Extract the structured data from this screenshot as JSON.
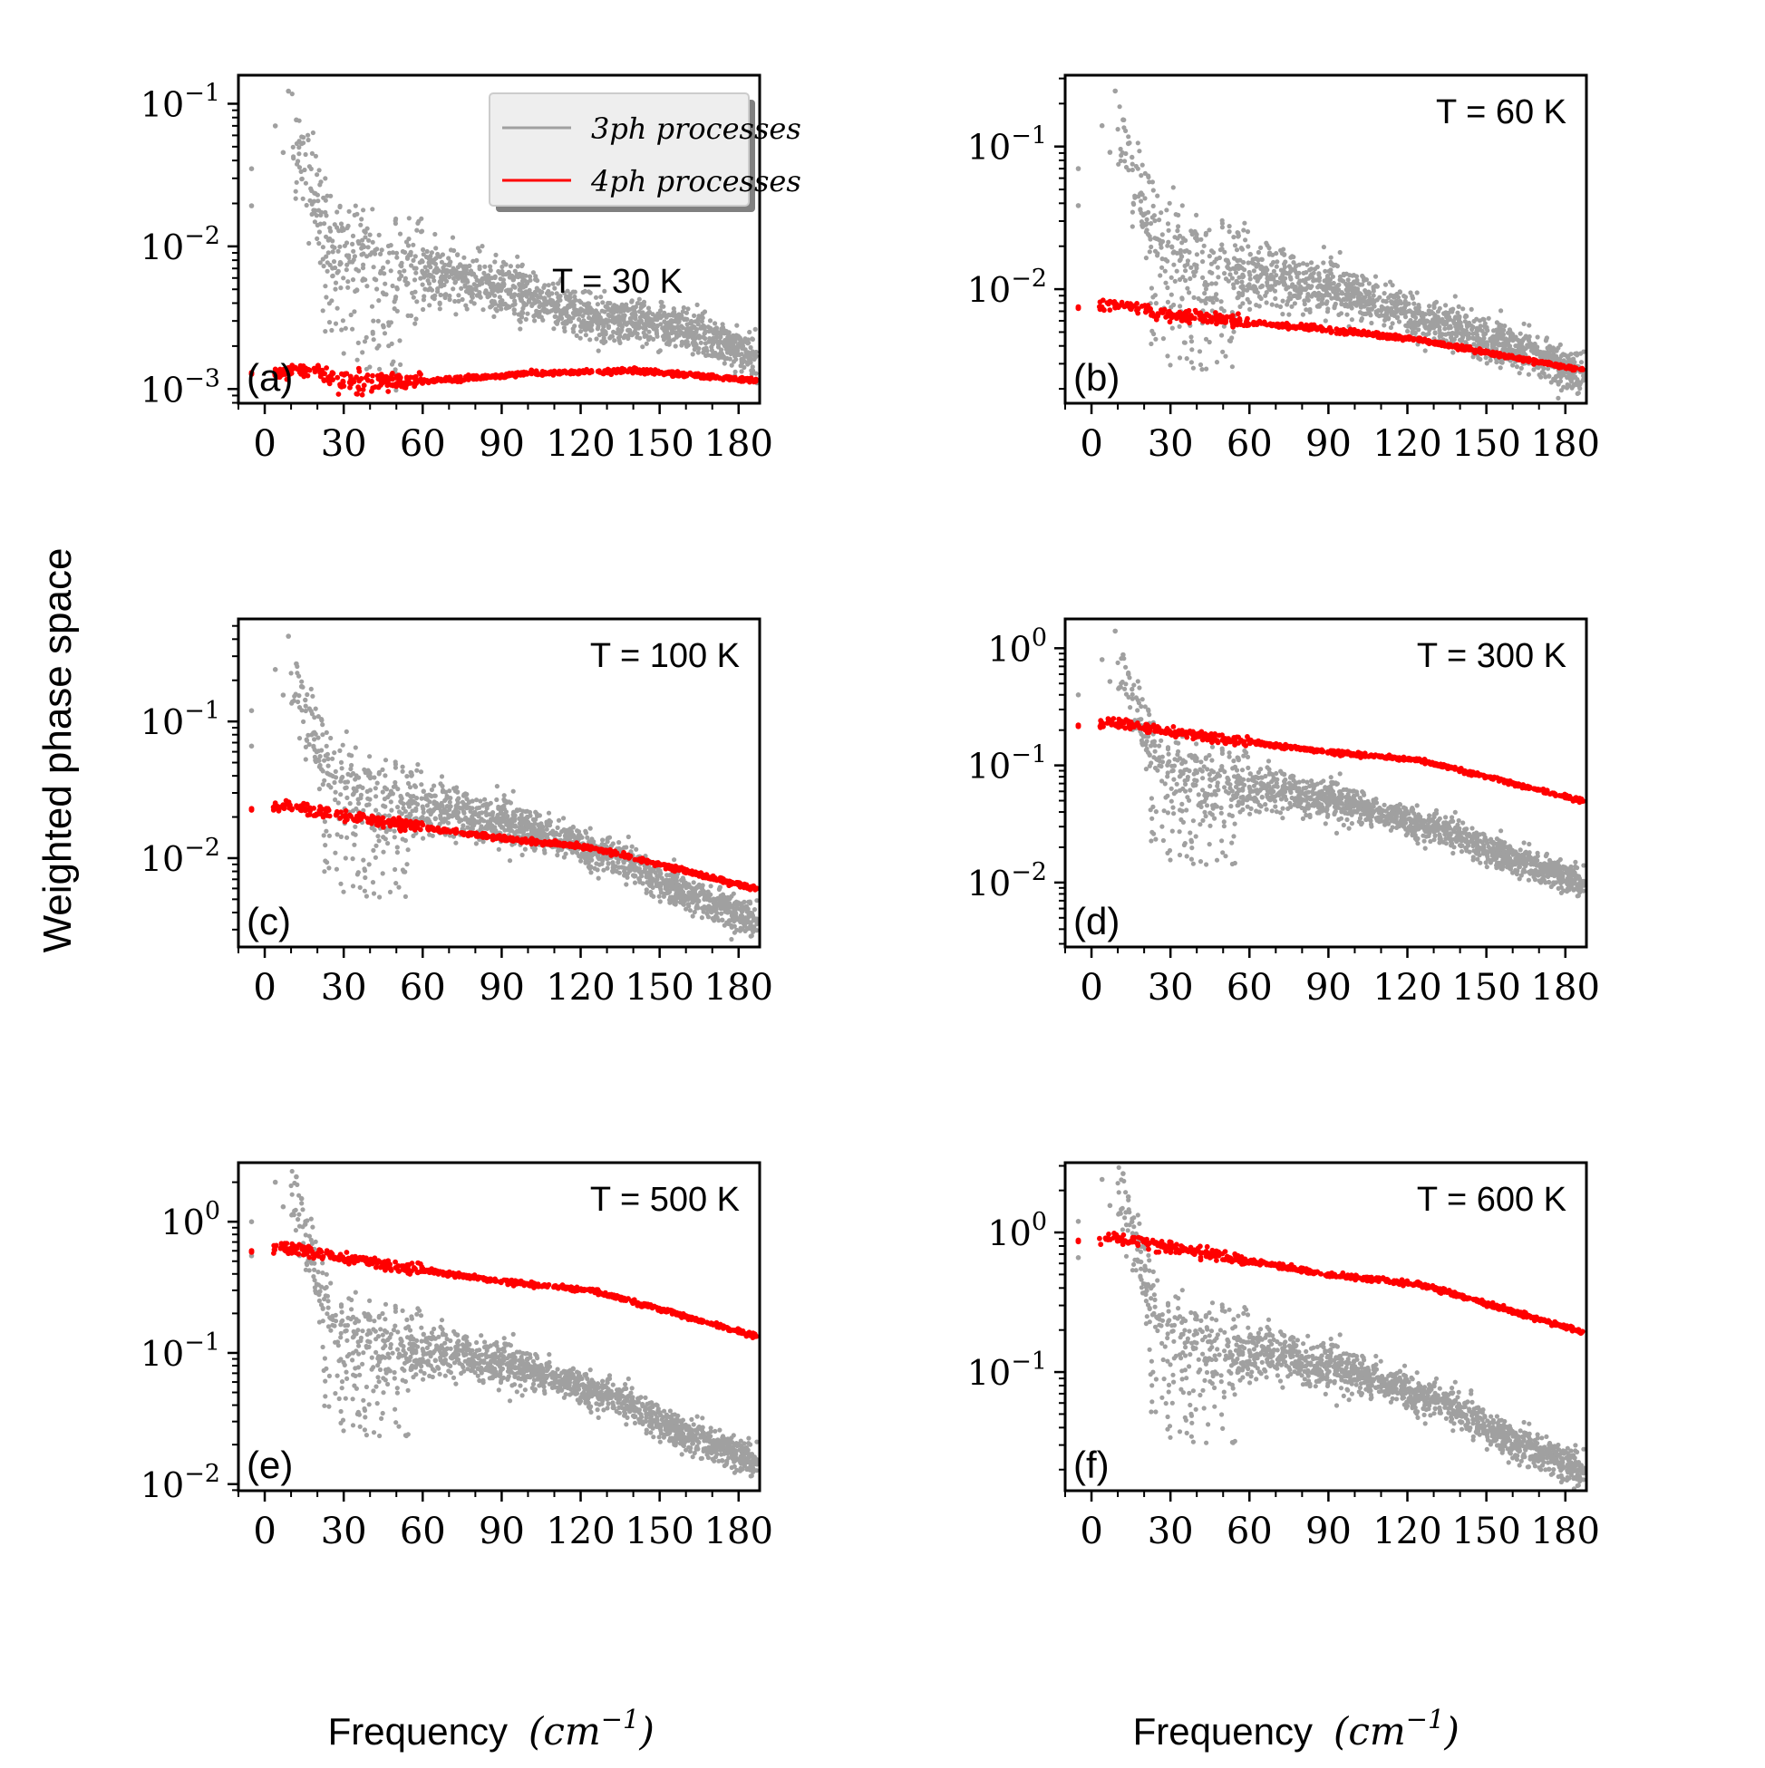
{
  "figure": {
    "ylabel": "Weighted phase space",
    "xlabel_text": "Frequency",
    "xlabel_unit_base": "cm",
    "xlabel_unit_exp": "−1",
    "legend": [
      {
        "label": "3ph processes",
        "color": "#a0a0a0"
      },
      {
        "label": "4ph processes",
        "color": "#ff0000"
      }
    ],
    "colors": {
      "three_ph": "#a0a0a0",
      "four_ph": "#ff0000",
      "axis": "#000000"
    }
  },
  "chart_data": [
    {
      "type": "scatter",
      "panel": "(a)",
      "temperature_label": "T = 30 K",
      "xlabel": "Frequency (cm^-1)",
      "ylabel": "Weighted phase space",
      "xlim": [
        -10,
        188
      ],
      "ylim_log10": [
        -3.1,
        -0.8
      ],
      "xticks": [
        0,
        30,
        60,
        90,
        120,
        150,
        180
      ],
      "yticks": [
        {
          "e": -3,
          "label": "−3"
        },
        {
          "e": -2,
          "label": "−2"
        },
        {
          "e": -1,
          "label": "−1"
        }
      ],
      "legend": true,
      "series": [
        {
          "name": "3ph processes",
          "start": 0.035,
          "mid": 0.0055,
          "end": 0.0017,
          "spread": 0.28
        },
        {
          "name": "4ph processes",
          "start": 0.0013,
          "dip": 0.00105,
          "peak": 0.00135,
          "end": 0.00115
        }
      ]
    },
    {
      "type": "scatter",
      "panel": "(b)",
      "temperature_label": "T = 60 K",
      "xlabel": "Frequency (cm^-1)",
      "ylabel": "Weighted phase space",
      "xlim": [
        -10,
        188
      ],
      "ylim_log10": [
        -2.8,
        -0.5
      ],
      "xticks": [
        0,
        30,
        60,
        90,
        120,
        150,
        180
      ],
      "yticks": [
        {
          "e": -2,
          "label": "−2"
        },
        {
          "e": -1,
          "label": "−1"
        }
      ],
      "legend": false,
      "series": [
        {
          "name": "3ph processes",
          "start": 0.07,
          "mid": 0.011,
          "end": 0.0025,
          "spread": 0.28
        },
        {
          "name": "4ph processes",
          "start": 0.0075,
          "mid": 0.0052,
          "end": 0.0027
        }
      ]
    },
    {
      "type": "scatter",
      "panel": "(c)",
      "temperature_label": "T = 100 K",
      "xlabel": "Frequency (cm^-1)",
      "ylabel": "Weighted phase space",
      "xlim": [
        -10,
        188
      ],
      "ylim_log10": [
        -2.65,
        -0.25
      ],
      "xticks": [
        0,
        30,
        60,
        90,
        120,
        150,
        180
      ],
      "yticks": [
        {
          "e": -2,
          "label": "−2"
        },
        {
          "e": -1,
          "label": "−1"
        }
      ],
      "legend": false,
      "series": [
        {
          "name": "3ph processes",
          "start": 0.12,
          "mid": 0.02,
          "end": 0.0035,
          "spread": 0.25
        },
        {
          "name": "4ph processes",
          "start": 0.023,
          "mid": 0.014,
          "end": 0.006
        }
      ]
    },
    {
      "type": "scatter",
      "panel": "(d)",
      "temperature_label": "T = 300 K",
      "xlabel": "Frequency (cm^-1)",
      "ylabel": "Weighted phase space",
      "xlim": [
        -10,
        188
      ],
      "ylim_log10": [
        -2.55,
        0.25
      ],
      "xticks": [
        0,
        30,
        60,
        90,
        120,
        150,
        180
      ],
      "yticks": [
        {
          "e": -2,
          "label": "−2"
        },
        {
          "e": -1,
          "label": "−1"
        },
        {
          "e": 0,
          "label": "0"
        }
      ],
      "legend": false,
      "series": [
        {
          "name": "3ph processes",
          "start": 0.4,
          "mid": 0.055,
          "end": 0.01,
          "spread": 0.25
        },
        {
          "name": "4ph processes",
          "start": 0.22,
          "mid": 0.13,
          "end": 0.05
        }
      ]
    },
    {
      "type": "scatter",
      "panel": "(e)",
      "temperature_label": "T = 500 K",
      "xlabel": "Frequency (cm^-1)",
      "ylabel": "Weighted phase space",
      "xlim": [
        -10,
        188
      ],
      "ylim_log10": [
        -2.05,
        0.45
      ],
      "xticks": [
        0,
        30,
        60,
        90,
        120,
        150,
        180
      ],
      "yticks": [
        {
          "e": -2,
          "label": "−2"
        },
        {
          "e": -1,
          "label": "−1"
        },
        {
          "e": 0,
          "label": "0"
        }
      ],
      "legend": false,
      "series": [
        {
          "name": "3ph processes",
          "start": 1.0,
          "mid": 0.09,
          "end": 0.015,
          "spread": 0.25
        },
        {
          "name": "4ph processes",
          "start": 0.6,
          "mid": 0.35,
          "end": 0.135
        }
      ]
    },
    {
      "type": "scatter",
      "panel": "(f)",
      "temperature_label": "T = 600 K",
      "xlabel": "Frequency (cm^-1)",
      "ylabel": "Weighted phase space",
      "xlim": [
        -10,
        188
      ],
      "ylim_log10": [
        -1.85,
        0.5
      ],
      "xticks": [
        0,
        30,
        60,
        90,
        120,
        150,
        180
      ],
      "yticks": [
        {
          "e": -1,
          "label": "−1"
        },
        {
          "e": 0,
          "label": "0"
        }
      ],
      "legend": false,
      "series": [
        {
          "name": "3ph processes",
          "start": 1.2,
          "mid": 0.12,
          "end": 0.02,
          "spread": 0.25
        },
        {
          "name": "4ph processes",
          "start": 0.88,
          "mid": 0.5,
          "end": 0.195
        }
      ]
    }
  ]
}
